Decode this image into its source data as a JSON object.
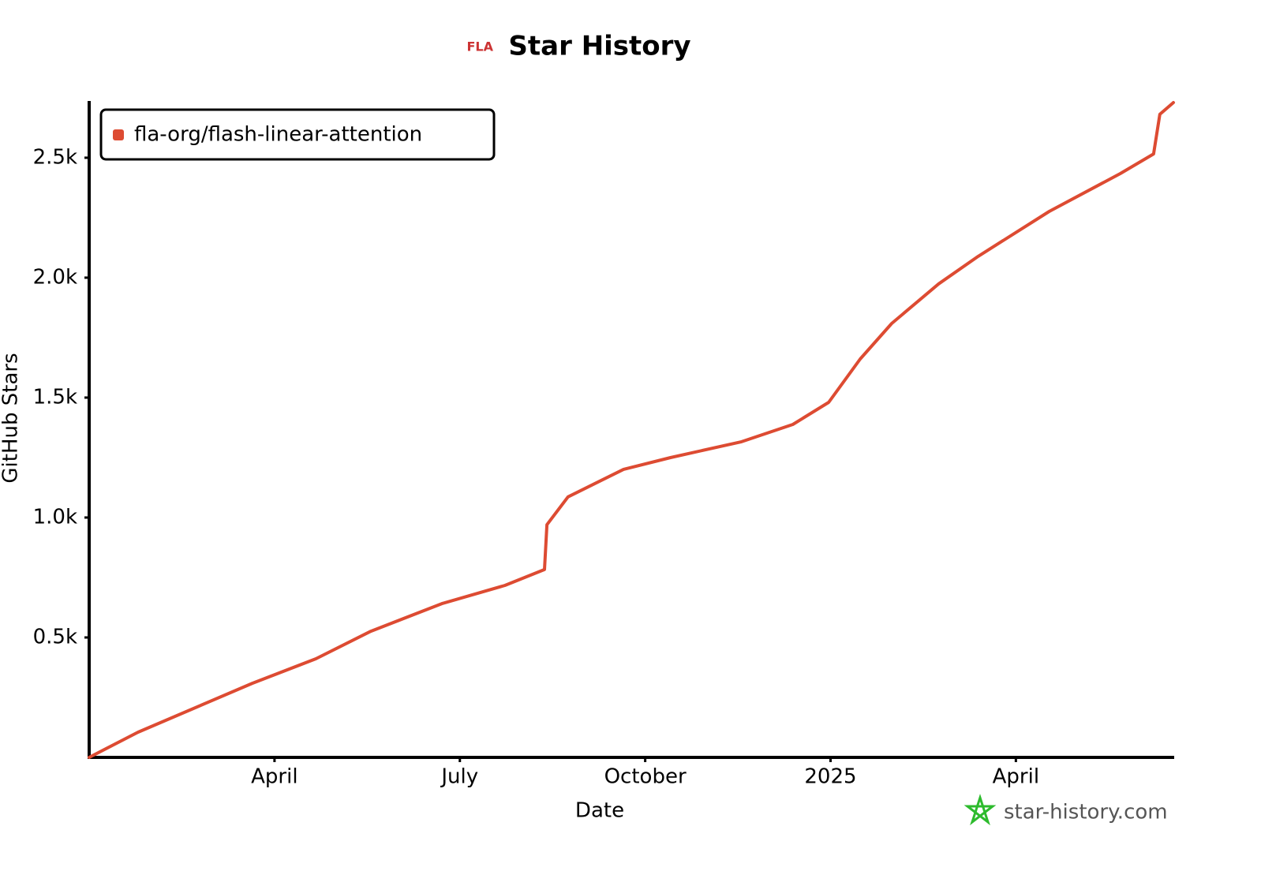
{
  "chart_data": {
    "type": "line",
    "logo": "FLA",
    "title": "Star History",
    "x_label": "Date",
    "y_label": "GitHub Stars",
    "watermark": "star-history.com",
    "x": [
      0,
      0.79,
      2.64,
      3.67,
      4.56,
      5.71,
      6.73,
      7.37,
      7.41,
      7.75,
      8.65,
      9.41,
      10.56,
      11.39,
      11.97,
      12.48,
      12.99,
      13.75,
      14.39,
      15.54,
      16.69,
      17.23,
      17.33,
      17.55
    ],
    "series": [
      {
        "name": "fla-org/flash-linear-attention",
        "color": "#dd4b32",
        "values": [
          0,
          105,
          309,
          411,
          526,
          641,
          717,
          783,
          970,
          1086,
          1201,
          1250,
          1316,
          1388,
          1480,
          1661,
          1809,
          1974,
          2089,
          2276,
          2434,
          2516,
          2681,
          2730
        ]
      }
    ],
    "xlim": [
      0,
      17.55
    ],
    "xticks": [
      {
        "value": 3,
        "label": "April"
      },
      {
        "value": 6,
        "label": "July"
      },
      {
        "value": 9,
        "label": "October"
      },
      {
        "value": 12,
        "label": "2025"
      },
      {
        "value": 15,
        "label": "April"
      }
    ],
    "ylim": [
      0,
      2730
    ],
    "yticks": [
      {
        "value": 500,
        "label": "0.5k"
      },
      {
        "value": 1000,
        "label": "1.0k"
      },
      {
        "value": 1500,
        "label": "1.5k"
      },
      {
        "value": 2000,
        "label": "2.0k"
      },
      {
        "value": 2500,
        "label": "2.5k"
      }
    ],
    "legend": "top-left"
  }
}
